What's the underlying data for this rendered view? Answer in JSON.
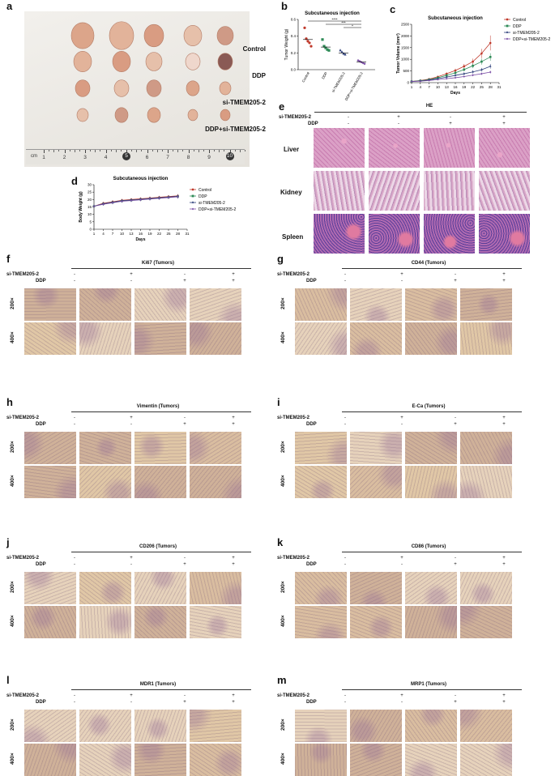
{
  "panels": {
    "a": {
      "letter": "a",
      "groups": [
        "Control",
        "DDP",
        "si-TMEM205-2",
        "DDP+si-TMEM205-2"
      ],
      "ruler_unit": "cm",
      "ruler_ticks": [
        "1",
        "2",
        "3",
        "4",
        "5",
        "6",
        "7",
        "8",
        "9",
        "10"
      ]
    },
    "b": {
      "letter": "b"
    },
    "c": {
      "letter": "c"
    },
    "d": {
      "letter": "d"
    },
    "e": {
      "letter": "e",
      "title": "HE",
      "row_labels": [
        "Liver",
        "Kidney",
        "Spleen"
      ]
    },
    "f": {
      "letter": "f",
      "title": "Ki67 (Tumors)"
    },
    "g": {
      "letter": "g",
      "title": "CD44 (Tumors)"
    },
    "h": {
      "letter": "h",
      "title": "Vimentin (Tumors)"
    },
    "i": {
      "letter": "i",
      "title": "E-Ca (Tumors)"
    },
    "j": {
      "letter": "j",
      "title": "CD206 (Tumors)"
    },
    "k": {
      "letter": "k",
      "title": "CD86 (Tumors)"
    },
    "l": {
      "letter": "l",
      "title": "MDR1 (Tumors)"
    },
    "m": {
      "letter": "m",
      "title": "MRP1 (Tumors)"
    }
  },
  "design": {
    "si_label": "si-TMEM205-2",
    "ddp_label": "DDP",
    "si_signs": [
      "-",
      "+",
      "-",
      "+"
    ],
    "ddp_signs": [
      "-",
      "-",
      "+",
      "+"
    ],
    "mag_labels": [
      "200×",
      "400×"
    ]
  },
  "colors": {
    "control": "#c0392b",
    "ddp": "#2e8b57",
    "si": "#2c3e7a",
    "combo": "#7b4fa6",
    "he": "#d98fb8",
    "ihc": "#d8bfa3"
  },
  "chart_data": [
    {
      "id": "b",
      "type": "scatter",
      "title": "Subcutaneous injection",
      "ylabel": "Tumor Weight (g)",
      "categories": [
        "Control",
        "DDP",
        "si-TMEM205-2",
        "DDP+si-TMEM205-2"
      ],
      "ylim": [
        0,
        0.6
      ],
      "yticks": [
        "0.0",
        "0.2",
        "0.4",
        "0.6"
      ],
      "points": [
        [
          0.5,
          0.37,
          0.34,
          0.32,
          0.28
        ],
        [
          0.36,
          0.28,
          0.26,
          0.24,
          0.23
        ],
        [
          0.23,
          0.21,
          0.19,
          0.18
        ],
        [
          0.11,
          0.1,
          0.09,
          0.08,
          0.07
        ]
      ],
      "means": [
        0.36,
        0.27,
        0.2,
        0.09
      ],
      "significance": [
        "****",
        "***",
        "*"
      ]
    },
    {
      "id": "c",
      "type": "line",
      "title": "Subcutaneous injection",
      "xlabel": "Days",
      "ylabel": "Tumor Volume (mm³)",
      "x": [
        1,
        4,
        7,
        10,
        13,
        16,
        19,
        22,
        25,
        28
      ],
      "xticks": [
        "1",
        "4",
        "7",
        "10",
        "13",
        "16",
        "19",
        "22",
        "25",
        "28",
        "31"
      ],
      "xlim": [
        1,
        31
      ],
      "ylim": [
        0,
        2500
      ],
      "yticks": [
        "0",
        "500",
        "1000",
        "1500",
        "2000",
        "2500"
      ],
      "legend": "top-right",
      "series": [
        {
          "name": "Control",
          "values": [
            50,
            90,
            150,
            250,
            380,
            520,
            700,
            900,
            1250,
            1700
          ],
          "err": [
            10,
            20,
            30,
            40,
            60,
            80,
            100,
            130,
            200,
            320
          ]
        },
        {
          "name": "DDP",
          "values": [
            50,
            80,
            130,
            210,
            310,
            420,
            560,
            720,
            900,
            1100
          ],
          "err": [
            10,
            15,
            25,
            35,
            50,
            60,
            80,
            100,
            130,
            160
          ]
        },
        {
          "name": "si-TMEM205-2",
          "values": [
            50,
            70,
            110,
            170,
            240,
            310,
            380,
            460,
            550,
            700
          ],
          "err": [
            10,
            15,
            20,
            30,
            40,
            50,
            60,
            70,
            80,
            100
          ]
        },
        {
          "name": "DDP+si-TMEM205-2",
          "values": [
            50,
            60,
            90,
            130,
            170,
            210,
            260,
            320,
            380,
            450
          ],
          "err": [
            8,
            10,
            15,
            20,
            25,
            30,
            40,
            45,
            50,
            60
          ]
        }
      ]
    },
    {
      "id": "d",
      "type": "line",
      "title": "Subcutaneous injection",
      "xlabel": "Days",
      "ylabel": "Body Weight (g)",
      "x": [
        1,
        4,
        7,
        10,
        13,
        16,
        19,
        22,
        25,
        28
      ],
      "xticks": [
        "1",
        "4",
        "7",
        "10",
        "13",
        "16",
        "19",
        "22",
        "25",
        "28",
        "31"
      ],
      "xlim": [
        1,
        31
      ],
      "ylim": [
        0,
        30
      ],
      "yticks": [
        "0",
        "5",
        "10",
        "15",
        "20",
        "25",
        "30"
      ],
      "legend": "top-right",
      "series": [
        {
          "name": "Control",
          "values": [
            15.5,
            17.5,
            18.5,
            19.5,
            20,
            20.5,
            21,
            21.5,
            22,
            22.5
          ],
          "err": [
            1,
            1,
            1,
            1,
            1,
            1,
            1,
            1,
            1,
            1.2
          ]
        },
        {
          "name": "DDP",
          "values": [
            15.5,
            17,
            18,
            19,
            19.5,
            20,
            20.5,
            21,
            21.5,
            22
          ],
          "err": [
            1,
            1,
            1,
            1,
            1,
            1,
            1,
            1,
            1,
            1.2
          ]
        },
        {
          "name": "si-TMEM205-2",
          "values": [
            15.5,
            17.2,
            18.2,
            19.2,
            19.7,
            20.2,
            20.7,
            21.2,
            21.7,
            22.2
          ],
          "err": [
            1,
            1,
            1,
            1,
            1,
            1,
            1,
            1,
            1,
            1.2
          ]
        },
        {
          "name": "DDP+si-TMEM205-2",
          "values": [
            15.5,
            16.8,
            17.8,
            18.8,
            19.3,
            19.8,
            20.3,
            20.8,
            21.3,
            21.8
          ],
          "err": [
            1,
            1,
            1,
            1,
            1,
            1,
            1,
            1,
            1,
            1.2
          ]
        }
      ]
    }
  ]
}
